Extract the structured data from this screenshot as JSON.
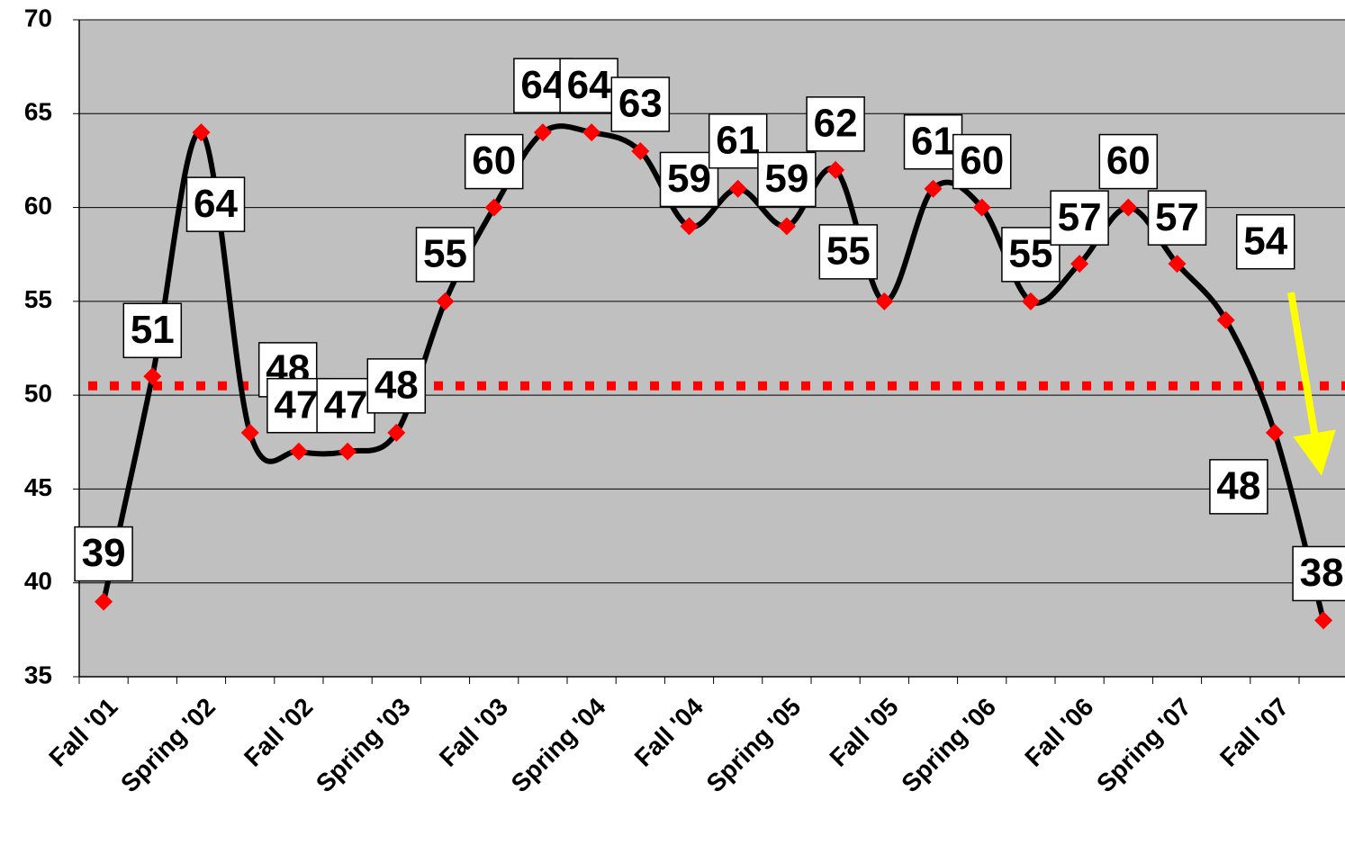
{
  "chart_data": {
    "type": "line",
    "categories": [
      "Fall '01",
      null,
      "Spring '02",
      null,
      "Fall '02",
      null,
      "Spring '03",
      null,
      "Fall '03",
      null,
      "Spring '04",
      null,
      "Fall '04",
      null,
      "Spring '05",
      null,
      "Fall '05",
      null,
      "Spring '06",
      null,
      "Fall '06",
      null,
      "Spring '07",
      null,
      "Fall '07",
      null
    ],
    "series": [
      {
        "color": "#000000",
        "marker_color": "#ff0000",
        "values": [
          39,
          51,
          64,
          48,
          47,
          47,
          48,
          55,
          60,
          64,
          64,
          63,
          59,
          61,
          59,
          62,
          55,
          61,
          60,
          55,
          57,
          60,
          57,
          54,
          48,
          38
        ]
      }
    ],
    "reference_line": {
      "value": 50.5,
      "color": "#ff0000"
    },
    "ylim": [
      35,
      70
    ],
    "yticks": [
      35,
      40,
      45,
      50,
      55,
      60,
      65,
      70
    ],
    "grid": true,
    "background": "#c0c0c0"
  }
}
